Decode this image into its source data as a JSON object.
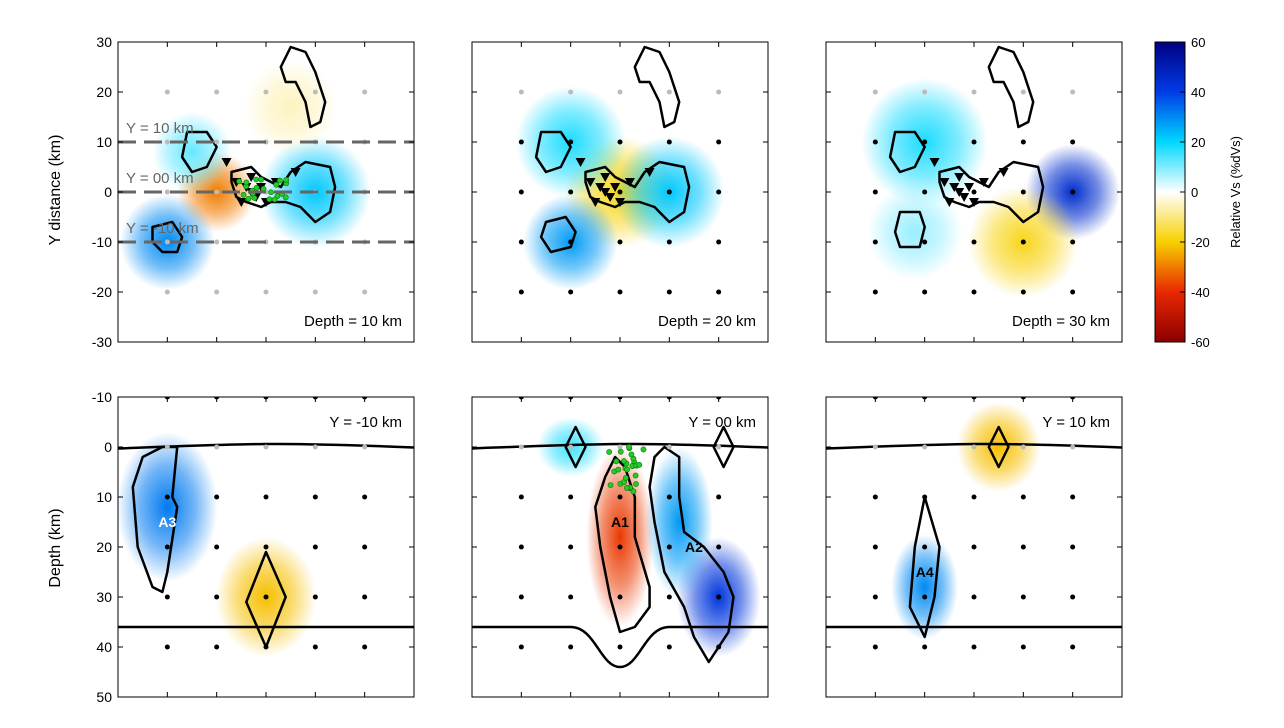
{
  "chart_data": {
    "type": "heatmap",
    "colorbar": {
      "label": "Relative Vs (%dVs)",
      "ticks": [
        60,
        40,
        20,
        0,
        -20,
        -40,
        -60
      ],
      "range": [
        -60,
        60
      ],
      "colors": {
        "low": "#8b0000",
        "mid_low": "#f7d000",
        "zero": "#ffffff",
        "mid_high": "#00d8ff",
        "high": "#000080"
      }
    },
    "map_view": {
      "ylabel": "Y distance (km)",
      "yticks": [
        30,
        20,
        10,
        0,
        -10,
        -20,
        -30
      ],
      "ylim": [
        -30,
        30
      ],
      "xlim": [
        -30,
        30
      ],
      "panels": [
        {
          "label": "Depth = 10 km",
          "profile_lines": [
            {
              "label": "Y = 10 km",
              "y": 10
            },
            {
              "label": "Y = 00 km",
              "y": 0
            },
            {
              "label": "Y = -10 km",
              "y": -10
            }
          ],
          "anomalies": [
            {
              "x": -10,
              "y": 0,
              "dv": -30,
              "r": 5
            },
            {
              "x": 10,
              "y": 0,
              "dv": 22,
              "r": 7
            },
            {
              "x": -20,
              "y": -10,
              "dv": 30,
              "r": 6
            },
            {
              "x": -15,
              "y": 8,
              "dv": 12,
              "r": 5
            },
            {
              "x": 5,
              "y": 17,
              "dv": -5,
              "r": 6
            }
          ],
          "earthquakes": true
        },
        {
          "label": "Depth = 20 km",
          "profile_lines": [],
          "anomalies": [
            {
              "x": 0,
              "y": 0,
              "dv": -18,
              "r": 7
            },
            {
              "x": 10,
              "y": 0,
              "dv": 22,
              "r": 7
            },
            {
              "x": -10,
              "y": -10,
              "dv": 28,
              "r": 6
            },
            {
              "x": -10,
              "y": 10,
              "dv": 18,
              "r": 7
            }
          ],
          "earthquakes": false
        },
        {
          "label": "Depth = 30 km",
          "profile_lines": [],
          "anomalies": [
            {
              "x": 20,
              "y": 0,
              "dv": 45,
              "r": 6
            },
            {
              "x": 10,
              "y": -10,
              "dv": -18,
              "r": 7
            },
            {
              "x": -10,
              "y": 10,
              "dv": 18,
              "r": 8
            },
            {
              "x": -12,
              "y": -8,
              "dv": 8,
              "r": 6
            }
          ],
          "earthquakes": false
        }
      ]
    },
    "cross_section": {
      "ylabel": "Depth (km)",
      "yticks": [
        -10,
        0,
        10,
        20,
        30,
        40,
        50
      ],
      "ylim": [
        -10,
        50
      ],
      "xlim": [
        -30,
        30
      ],
      "panels": [
        {
          "label": "Y = -10 km",
          "anomalies": [
            {
              "x": -20,
              "z": 12,
              "dv": 32,
              "rx": 6,
              "rz": 10,
              "name": "A3"
            },
            {
              "x": 0,
              "z": 30,
              "dv": -22,
              "rx": 6,
              "rz": 8
            }
          ],
          "labels": [
            {
              "text": "A3",
              "x": -20,
              "z": 15,
              "color": "#ffffff"
            }
          ]
        },
        {
          "label": "Y = 00 km",
          "anomalies": [
            {
              "x": 0,
              "z": 18,
              "dv": -38,
              "rx": 4,
              "rz": 12,
              "name": "A1"
            },
            {
              "x": 20,
              "z": 30,
              "dv": 42,
              "rx": 5,
              "rz": 8,
              "name": "A2"
            },
            {
              "x": 12,
              "z": 15,
              "dv": 28,
              "rx": 4,
              "rz": 10
            },
            {
              "x": -10,
              "z": 0,
              "dv": 15,
              "rx": 4,
              "rz": 4
            }
          ],
          "labels": [
            {
              "text": "A1",
              "x": 0,
              "z": 15,
              "color": "#000000"
            },
            {
              "text": "A2",
              "x": 15,
              "z": 20,
              "color": "#000000"
            }
          ],
          "earthquakes": true
        },
        {
          "label": "Y = 10 km",
          "anomalies": [
            {
              "x": -10,
              "z": 28,
              "dv": 30,
              "rx": 4,
              "rz": 7,
              "name": "A4"
            },
            {
              "x": 5,
              "z": 0,
              "dv": -22,
              "rx": 5,
              "rz": 6
            }
          ],
          "labels": [
            {
              "text": "A4",
              "x": -10,
              "z": 25,
              "color": "#000000"
            }
          ]
        }
      ]
    },
    "map_xticks": [
      -30,
      -20,
      -10,
      0,
      10,
      20,
      30
    ],
    "station_grid": [
      -20,
      -10,
      0,
      10,
      20
    ]
  }
}
